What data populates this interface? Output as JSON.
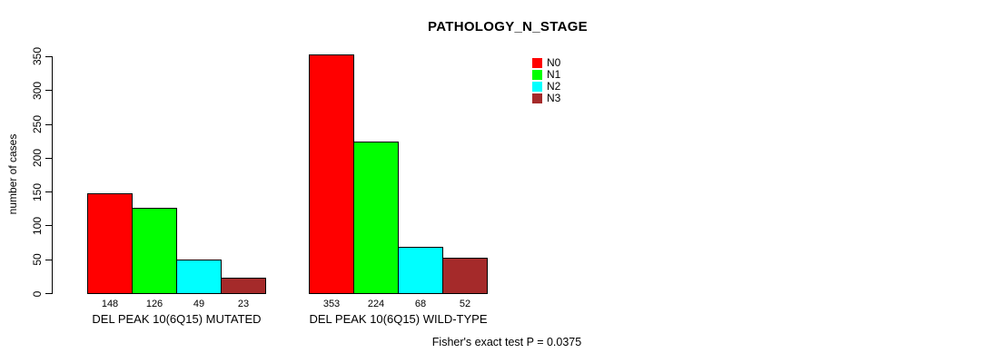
{
  "chart_data": {
    "type": "bar",
    "title": "PATHOLOGY_N_STAGE",
    "ylabel": "number of cases",
    "annotation": "Fisher's exact test P = 0.0375",
    "categories": [
      "DEL PEAK 10(6Q15) MUTATED",
      "DEL PEAK 10(6Q15) WILD-TYPE"
    ],
    "series": [
      {
        "name": "N0",
        "color": "#ff0000",
        "values": [
          148,
          353
        ]
      },
      {
        "name": "N1",
        "color": "#00ff00",
        "values": [
          126,
          224
        ]
      },
      {
        "name": "N2",
        "color": "#00ffff",
        "values": [
          49,
          68
        ]
      },
      {
        "name": "N3",
        "color": "#a52a2a",
        "values": [
          23,
          52
        ]
      }
    ],
    "yticks": [
      0,
      50,
      100,
      150,
      200,
      250,
      300,
      350
    ],
    "ylim": [
      0,
      353
    ],
    "grid": false,
    "bar_value_labels": true,
    "bar_border_color": "#000000",
    "legend_position": "top-right"
  }
}
